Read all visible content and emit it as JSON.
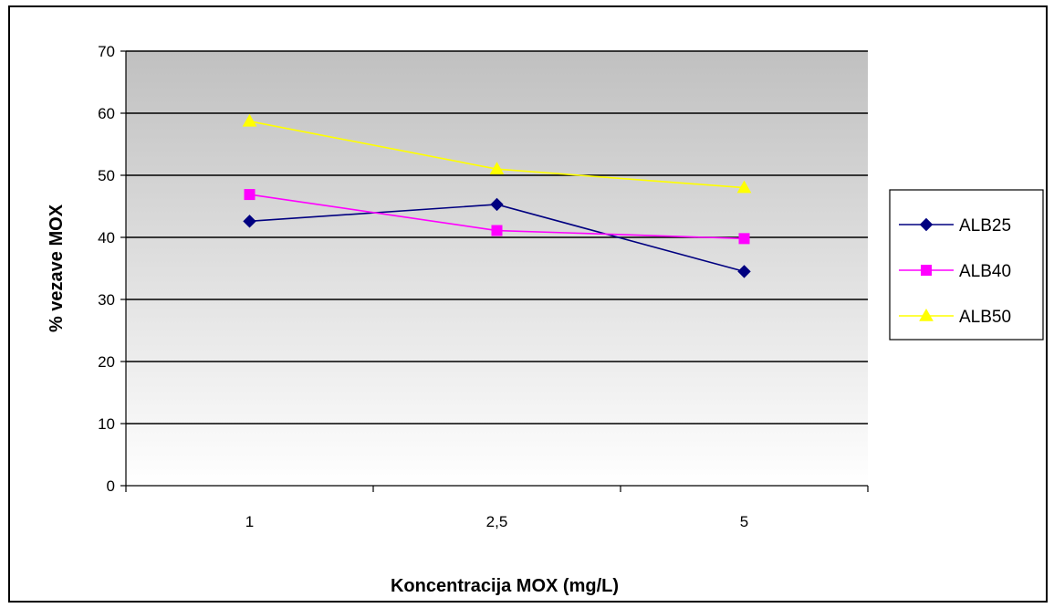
{
  "chart_data": {
    "type": "line",
    "title": "",
    "xlabel": "Koncentracija MOX (mg/L)",
    "ylabel": "% vezave MOX",
    "categories": [
      "1",
      "2,5",
      "5"
    ],
    "ylim": [
      0,
      70
    ],
    "yticks": [
      0,
      10,
      20,
      30,
      40,
      50,
      60,
      70
    ],
    "grid": true,
    "legend_position": "right",
    "series": [
      {
        "name": "ALB25",
        "values": [
          42.6,
          45.3,
          34.5
        ],
        "color": "#000080",
        "marker": "diamond"
      },
      {
        "name": "ALB40",
        "values": [
          46.9,
          41.1,
          39.8
        ],
        "color": "#ff00ff",
        "marker": "square"
      },
      {
        "name": "ALB50",
        "values": [
          58.7,
          51.0,
          48.0
        ],
        "color": "#ffff00",
        "marker": "triangle"
      }
    ],
    "background_gradient": [
      "#c0c0c0",
      "#ffffff"
    ]
  }
}
